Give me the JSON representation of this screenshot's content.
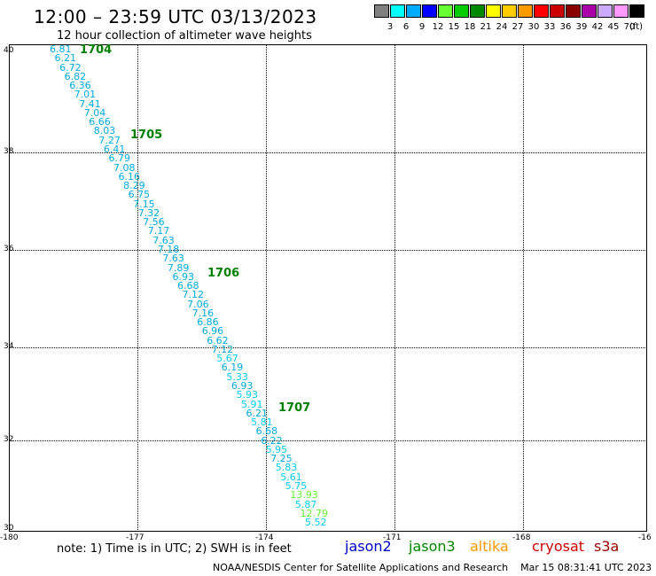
{
  "header": {
    "title": "12:00 – 23:59 UTC 03/13/2023",
    "subtitle": "12 hour collection of altimeter wave heights"
  },
  "scale": {
    "colors": [
      "#808080",
      "#00ffff",
      "#00aaff",
      "#0000ff",
      "#66ff33",
      "#00cc00",
      "#008800",
      "#ffff00",
      "#ffcc00",
      "#ff9900",
      "#ff0000",
      "#cc0000",
      "#880000",
      "#aa00aa",
      "#ccaaff",
      "#ff99ff",
      "#000000"
    ],
    "labels": [
      "3",
      "6",
      "9",
      "12",
      "15",
      "18",
      "21",
      "24",
      "27",
      "30",
      "33",
      "36",
      "39",
      "42",
      "45",
      "70"
    ],
    "unit": "(ft)"
  },
  "axes": {
    "lat_labels": [
      "40",
      "38",
      "36",
      "34",
      "32",
      "30"
    ],
    "lon_labels": [
      "-180",
      "-177",
      "-174",
      "-171",
      "-168",
      "-16"
    ]
  },
  "readings": [
    {
      "v": "6.81",
      "c": "#00aadd"
    },
    {
      "v": "6.21",
      "c": "#00aadd"
    },
    {
      "v": "6.72",
      "c": "#00aadd"
    },
    {
      "v": "6.82",
      "c": "#00aadd"
    },
    {
      "v": "6.36",
      "c": "#00aadd"
    },
    {
      "v": "7.01",
      "c": "#00aadd"
    },
    {
      "v": "7.41",
      "c": "#00aadd"
    },
    {
      "v": "7.04",
      "c": "#00aadd"
    },
    {
      "v": "6.66",
      "c": "#00aadd"
    },
    {
      "v": "8.03",
      "c": "#00aadd"
    },
    {
      "v": "7.27",
      "c": "#00aadd"
    },
    {
      "v": "6.41",
      "c": "#00aadd"
    },
    {
      "v": "6.79",
      "c": "#00aadd"
    },
    {
      "v": "7.08",
      "c": "#00aadd"
    },
    {
      "v": "6.16",
      "c": "#00aadd"
    },
    {
      "v": "8.29",
      "c": "#00aadd"
    },
    {
      "v": "6.75",
      "c": "#00aadd"
    },
    {
      "v": "7.15",
      "c": "#00aadd"
    },
    {
      "v": "7.32",
      "c": "#00aadd"
    },
    {
      "v": "7.56",
      "c": "#00aadd"
    },
    {
      "v": "7.17",
      "c": "#00aadd"
    },
    {
      "v": "7.63",
      "c": "#00aadd"
    },
    {
      "v": "7.18",
      "c": "#00aadd"
    },
    {
      "v": "7.63",
      "c": "#00aadd"
    },
    {
      "v": "7.89",
      "c": "#00aadd"
    },
    {
      "v": "6.93",
      "c": "#00aadd"
    },
    {
      "v": "6.68",
      "c": "#00aadd"
    },
    {
      "v": "7.12",
      "c": "#00aadd"
    },
    {
      "v": "7.06",
      "c": "#00aadd"
    },
    {
      "v": "7.16",
      "c": "#00aadd"
    },
    {
      "v": "6.86",
      "c": "#00aadd"
    },
    {
      "v": "6.96",
      "c": "#00aadd"
    },
    {
      "v": "6.62",
      "c": "#00aadd"
    },
    {
      "v": "7.12",
      "c": "#00aadd"
    },
    {
      "v": "5.67",
      "c": "#00ccee"
    },
    {
      "v": "6.19",
      "c": "#00aadd"
    },
    {
      "v": "5.33",
      "c": "#00ccee"
    },
    {
      "v": "6.93",
      "c": "#00aadd"
    },
    {
      "v": "5.93",
      "c": "#00ccee"
    },
    {
      "v": "5.91",
      "c": "#00ccee"
    },
    {
      "v": "6.21",
      "c": "#00aadd"
    },
    {
      "v": "5.81",
      "c": "#00ccee"
    },
    {
      "v": "6.68",
      "c": "#00aadd"
    },
    {
      "v": "6.22",
      "c": "#00aadd"
    },
    {
      "v": "5.95",
      "c": "#00ccee"
    },
    {
      "v": "7.25",
      "c": "#00aadd"
    },
    {
      "v": "5.83",
      "c": "#00ccee"
    },
    {
      "v": "5.61",
      "c": "#00ccee"
    },
    {
      "v": "5.75",
      "c": "#00ccee"
    },
    {
      "v": "13.93",
      "c": "#66ee33"
    },
    {
      "v": "5.87",
      "c": "#00ccee"
    },
    {
      "v": "12.79",
      "c": "#66ee33"
    },
    {
      "v": "5.52",
      "c": "#00ccee"
    }
  ],
  "times": [
    "1704",
    "1705",
    "1706",
    "1707"
  ],
  "legend": {
    "note": "note: 1) Time is in UTC; 2) SWH is in feet",
    "satellites": [
      {
        "name": "jason2",
        "color": "#0000cc"
      },
      {
        "name": "jason3",
        "color": "#008800"
      },
      {
        "name": "altika",
        "color": "#ff9900"
      },
      {
        "name": "cryosat",
        "color": "#cc0000"
      },
      {
        "name": "s3a",
        "color": "#990000"
      }
    ]
  },
  "footer": {
    "credit": "NOAA/NESDIS Center for Satellite Applications and Research",
    "timestamp": "Mar 15 08:31:41 UTC 2023"
  }
}
